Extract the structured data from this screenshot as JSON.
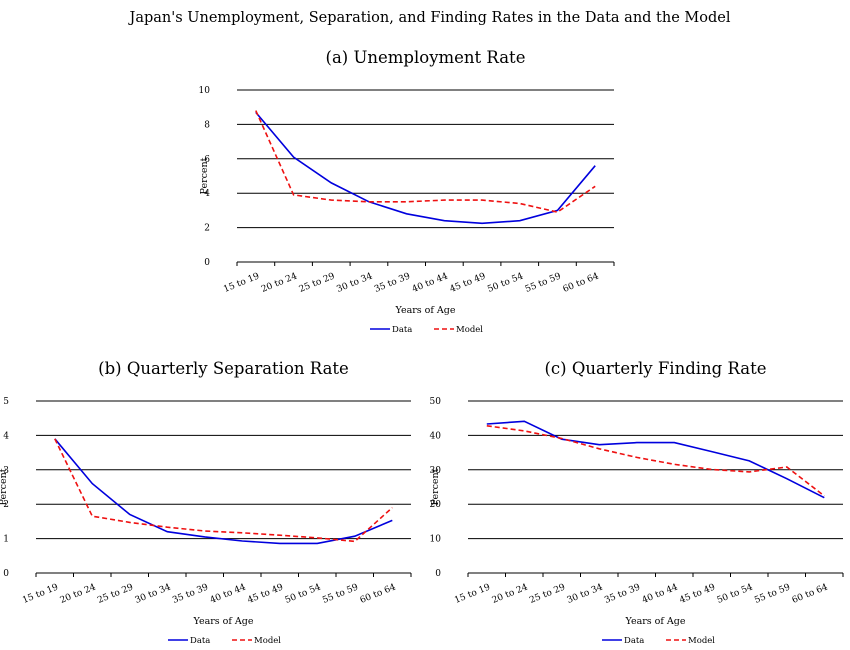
{
  "figure_title": "Japan's Unemployment, Separation, and Finding Rates in the Data and the Model",
  "colors": {
    "data": "#0000dd",
    "model": "#ee1111",
    "grid": "#000000"
  },
  "chart_data": [
    {
      "id": "a",
      "type": "line",
      "title": "(a) Unemployment Rate",
      "xlabel": "Years of Age",
      "ylabel": "Percent",
      "categories": [
        "15 to 19",
        "20 to 24",
        "25 to 29",
        "30 to 34",
        "35 to 39",
        "40 to 44",
        "45 to 49",
        "50 to 54",
        "55 to 59",
        "60 to 64"
      ],
      "ylim": [
        0,
        10
      ],
      "yticks": [
        "0",
        "2",
        "4",
        "6",
        "8",
        "10"
      ],
      "grid": "horizontal",
      "legend_position": "bottom",
      "series": [
        {
          "name": "Data",
          "style": "solid",
          "values": [
            8.7,
            6.1,
            4.6,
            3.5,
            2.8,
            2.4,
            2.25,
            2.4,
            3.0,
            5.6
          ]
        },
        {
          "name": "Model",
          "style": "dashed",
          "values": [
            8.8,
            3.9,
            3.6,
            3.5,
            3.5,
            3.6,
            3.6,
            3.4,
            2.9,
            4.4
          ]
        }
      ]
    },
    {
      "id": "b",
      "type": "line",
      "title": "(b) Quarterly Separation Rate",
      "xlabel": "Years of Age",
      "ylabel": "Percent",
      "categories": [
        "15 to 19",
        "20 to 24",
        "25 to 29",
        "30 to 34",
        "35 to 39",
        "40 to 44",
        "45 to 49",
        "50 to 54",
        "55 to 59",
        "60 to 64"
      ],
      "ylim": [
        0,
        5
      ],
      "yticks": [
        "0",
        "1",
        "2",
        "3",
        "4",
        "5"
      ],
      "grid": "horizontal",
      "legend_position": "bottom",
      "series": [
        {
          "name": "Data",
          "style": "solid",
          "values": [
            3.9,
            2.6,
            1.7,
            1.2,
            1.05,
            0.93,
            0.86,
            0.86,
            1.07,
            1.53
          ]
        },
        {
          "name": "Model",
          "style": "dashed",
          "values": [
            3.9,
            1.65,
            1.47,
            1.33,
            1.22,
            1.17,
            1.1,
            1.02,
            0.92,
            1.9
          ]
        }
      ]
    },
    {
      "id": "c",
      "type": "line",
      "title": "(c) Quarterly Finding Rate",
      "xlabel": "Years of Age",
      "ylabel": "Percent",
      "categories": [
        "15 to 19",
        "20 to 24",
        "25 to 29",
        "30 to 34",
        "35 to 39",
        "40 to 44",
        "45 to 49",
        "50 to 54",
        "55 to 59",
        "60 to 64"
      ],
      "ylim": [
        0,
        50
      ],
      "yticks": [
        "0",
        "10",
        "20",
        "30",
        "40",
        "50"
      ],
      "grid": "horizontal",
      "legend_position": "bottom",
      "series": [
        {
          "name": "Data",
          "style": "solid",
          "values": [
            43.3,
            44.1,
            38.9,
            37.3,
            37.9,
            37.9,
            35.3,
            32.6,
            27.4,
            21.9
          ]
        },
        {
          "name": "Model",
          "style": "dashed",
          "values": [
            42.8,
            41.3,
            39.1,
            36.1,
            33.6,
            31.6,
            30.1,
            29.4,
            30.8,
            22.4
          ]
        }
      ]
    }
  ]
}
